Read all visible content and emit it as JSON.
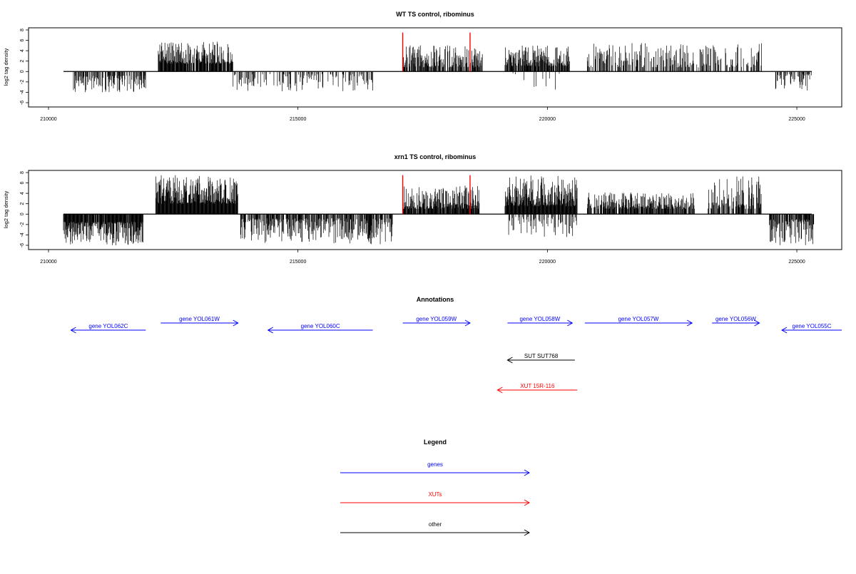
{
  "chart_data": [
    {
      "type": "bar",
      "title": "WT TS control, ribominus",
      "ylabel": "log2 tag density",
      "xlabel": "",
      "xlim": [
        209600,
        225900
      ],
      "ylim": [
        -6,
        8
      ],
      "x_ticks": [
        210000,
        215000,
        220000,
        225000
      ],
      "y_ticks": [
        8,
        6,
        4,
        2,
        0,
        -2,
        -4,
        -6
      ],
      "baseline": [
        210300,
        225300
      ],
      "markers": [
        {
          "x": 217100,
          "color": "#ff0000"
        },
        {
          "x": 218450,
          "color": "#ff0000"
        }
      ],
      "segments": [
        {
          "x0": 210500,
          "x1": 211950,
          "sign": -1,
          "min": 0.8,
          "max": 4.0,
          "density": 0.55
        },
        {
          "x0": 212200,
          "x1": 213700,
          "sign": 1,
          "min": 1.5,
          "max": 5.8,
          "density": 0.9
        },
        {
          "x0": 213700,
          "x1": 216500,
          "sign": -1,
          "min": 0.5,
          "max": 3.8,
          "density": 0.3
        },
        {
          "x0": 217100,
          "x1": 218700,
          "sign": 1,
          "min": 0.8,
          "max": 5.2,
          "density": 0.7
        },
        {
          "x0": 219150,
          "x1": 220450,
          "sign": 1,
          "min": 1.0,
          "max": 5.0,
          "density": 0.8
        },
        {
          "x0": 219200,
          "x1": 220300,
          "sign": -1,
          "min": 0.3,
          "max": 3.5,
          "density": 0.1
        },
        {
          "x0": 220800,
          "x1": 224300,
          "sign": 1,
          "min": 0.8,
          "max": 5.5,
          "density": 0.45
        },
        {
          "x0": 224550,
          "x1": 225300,
          "sign": -1,
          "min": 0.5,
          "max": 3.7,
          "density": 0.4
        }
      ]
    },
    {
      "type": "bar",
      "title": "xrn1 TS control, ribominus",
      "ylabel": "log2 tag density",
      "xlabel": "",
      "xlim": [
        209600,
        225900
      ],
      "ylim": [
        -6,
        8
      ],
      "x_ticks": [
        210000,
        215000,
        220000,
        225000
      ],
      "y_ticks": [
        8,
        6,
        4,
        2,
        0,
        -2,
        -4,
        -6
      ],
      "baseline": [
        210300,
        225300
      ],
      "markers": [
        {
          "x": 217100,
          "color": "#ff0000"
        },
        {
          "x": 218450,
          "color": "#ff0000"
        }
      ],
      "segments": [
        {
          "x0": 210300,
          "x1": 211900,
          "sign": -1,
          "min": 1.5,
          "max": 6.0,
          "density": 0.95
        },
        {
          "x0": 212150,
          "x1": 213800,
          "sign": 1,
          "min": 2.0,
          "max": 7.5,
          "density": 1.0
        },
        {
          "x0": 213850,
          "x1": 216900,
          "sign": -1,
          "min": 0.8,
          "max": 5.8,
          "density": 0.7
        },
        {
          "x0": 217100,
          "x1": 218650,
          "sign": 1,
          "min": 1.0,
          "max": 5.5,
          "density": 0.9
        },
        {
          "x0": 219150,
          "x1": 220600,
          "sign": 1,
          "min": 1.5,
          "max": 7.5,
          "density": 1.0
        },
        {
          "x0": 219200,
          "x1": 220600,
          "sign": -1,
          "min": 0.5,
          "max": 5.0,
          "density": 0.4
        },
        {
          "x0": 220800,
          "x1": 222950,
          "sign": 1,
          "min": 1.0,
          "max": 4.2,
          "density": 0.8
        },
        {
          "x0": 223200,
          "x1": 224300,
          "sign": 1,
          "min": 1.0,
          "max": 7.3,
          "density": 0.6
        },
        {
          "x0": 224450,
          "x1": 225350,
          "sign": -1,
          "min": 1.0,
          "max": 6.0,
          "density": 0.8
        }
      ]
    }
  ],
  "annotations": {
    "title": "Annotations",
    "features": [
      {
        "label": "gene YOL062C",
        "x0": 211950,
        "x1": 210450,
        "row": 1,
        "color": "#0000ff"
      },
      {
        "label": "gene YOL061W",
        "x0": 212250,
        "x1": 213800,
        "row": 0,
        "color": "#0000ff"
      },
      {
        "label": "gene YOL060C",
        "x0": 216500,
        "x1": 214400,
        "row": 1,
        "color": "#0000ff"
      },
      {
        "label": "gene YOL059W",
        "x0": 217100,
        "x1": 218450,
        "row": 0,
        "color": "#0000ff"
      },
      {
        "label": "gene YOL058W",
        "x0": 219200,
        "x1": 220500,
        "row": 0,
        "color": "#0000ff"
      },
      {
        "label": "gene YOL057W",
        "x0": 220750,
        "x1": 222900,
        "row": 0,
        "color": "#0000ff"
      },
      {
        "label": "gene YOL056W",
        "x0": 223300,
        "x1": 224250,
        "row": 0,
        "color": "#0000ff"
      },
      {
        "label": "gene YOL055C",
        "x0": 225900,
        "x1": 224700,
        "row": 1,
        "color": "#0000ff"
      },
      {
        "label": "SUT SUT768",
        "x0": 220550,
        "x1": 219200,
        "row": 2,
        "color": "#000000"
      },
      {
        "label": "XUT 15R-116",
        "x0": 220600,
        "x1": 219000,
        "row": 3,
        "color": "#ff0000"
      }
    ]
  },
  "legend": {
    "title": "Legend",
    "items": [
      {
        "label": "genes",
        "color": "#0000ff"
      },
      {
        "label": "XUTs",
        "color": "#ff0000"
      },
      {
        "label": "other",
        "color": "#000000"
      }
    ]
  }
}
